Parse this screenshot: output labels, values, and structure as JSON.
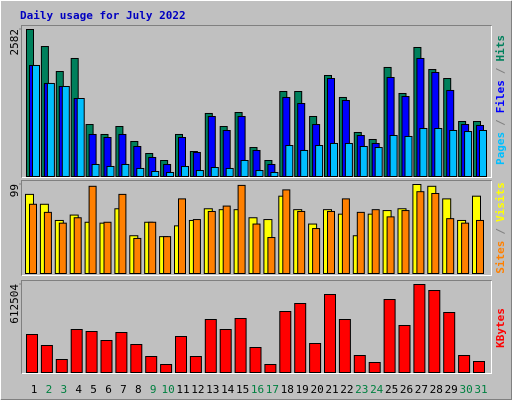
{
  "legend_separator": "/",
  "chart_data": [
    {
      "type": "bar",
      "title": "Daily usage for July 2022",
      "ylim": [
        0,
        2582
      ],
      "yticks": [
        2582
      ],
      "series": [
        {
          "name": "Hits",
          "color": "#00805c",
          "values": [
            2582,
            2283,
            1844,
            2073,
            913,
            738,
            878,
            615,
            404,
            281,
            738,
            439,
            1107,
            878,
            1124,
            509,
            281,
            1493,
            1493,
            1054,
            1774,
            1388,
            773,
            650,
            1915,
            1458,
            2266,
            1879,
            1721,
            966,
            966
          ]
        },
        {
          "name": "Files",
          "color": "#0000ff",
          "values": [
            1950,
            1634,
            1581,
            1370,
            738,
            685,
            738,
            527,
            334,
            211,
            685,
            422,
            1054,
            808,
            1054,
            457,
            211,
            1388,
            1282,
            913,
            1721,
            1335,
            720,
            580,
            1739,
            1405,
            2073,
            1827,
            1511,
            913,
            896
          ]
        },
        {
          "name": "Pages",
          "color": "#00bfff",
          "values": [
            1950,
            1634,
            1581,
            1370,
            211,
            176,
            211,
            141,
            88,
            70,
            176,
            105,
            158,
            141,
            281,
            105,
            70,
            544,
            457,
            544,
            580,
            580,
            527,
            509,
            720,
            703,
            843,
            843,
            808,
            790,
            808
          ]
        }
      ]
    },
    {
      "type": "bar",
      "ylim": [
        0,
        99
      ],
      "yticks": [
        99
      ],
      "series": [
        {
          "name": "Visits",
          "color": "#ffff00",
          "values": [
            88,
            77,
            59,
            65,
            57,
            56,
            72,
            42,
            57,
            41,
            53,
            59,
            72,
            71,
            71,
            62,
            60,
            86,
            71,
            55,
            71,
            66,
            42,
            66,
            70,
            72,
            99,
            97,
            83,
            59,
            86
          ]
        },
        {
          "name": "Sites",
          "color": "#ff8000",
          "values": [
            77,
            68,
            56,
            62,
            97,
            57,
            88,
            39,
            57,
            41,
            83,
            60,
            69,
            75,
            98,
            55,
            40,
            93,
            69,
            50,
            69,
            83,
            68,
            71,
            63,
            70,
            91,
            89,
            61,
            56,
            59
          ]
        }
      ]
    },
    {
      "type": "bar",
      "ylim": [
        0,
        612504
      ],
      "yticks": [
        612504
      ],
      "categories": [
        "1",
        "2",
        "3",
        "4",
        "5",
        "6",
        "7",
        "8",
        "9",
        "10",
        "11",
        "12",
        "13",
        "14",
        "15",
        "16",
        "17",
        "18",
        "19",
        "20",
        "21",
        "22",
        "23",
        "24",
        "25",
        "26",
        "27",
        "28",
        "29",
        "30",
        "31"
      ],
      "category_colors": [
        "#000000",
        "#008040",
        "#008040",
        "#000000",
        "#000000",
        "#000000",
        "#000000",
        "#000000",
        "#008040",
        "#008040",
        "#000000",
        "#000000",
        "#000000",
        "#000000",
        "#000000",
        "#008040",
        "#008040",
        "#000000",
        "#000000",
        "#000000",
        "#000000",
        "#000000",
        "#008040",
        "#008040",
        "#000000",
        "#000000",
        "#000000",
        "#000000",
        "#000000",
        "#008040",
        "#008040"
      ],
      "series": [
        {
          "name": "KBytes",
          "color": "#ff0000",
          "values": [
            264480,
            187920,
            90480,
            299280,
            285360,
            222720,
            278400,
            194880,
            111360,
            55680,
            250560,
            111360,
            368880,
            299280,
            375840,
            174000,
            55680,
            424560,
            480240,
            201840,
            542880,
            368880,
            118320,
            69600,
            508080,
            327120,
            612504,
            570720,
            417600,
            118320,
            76560
          ]
        }
      ]
    }
  ]
}
